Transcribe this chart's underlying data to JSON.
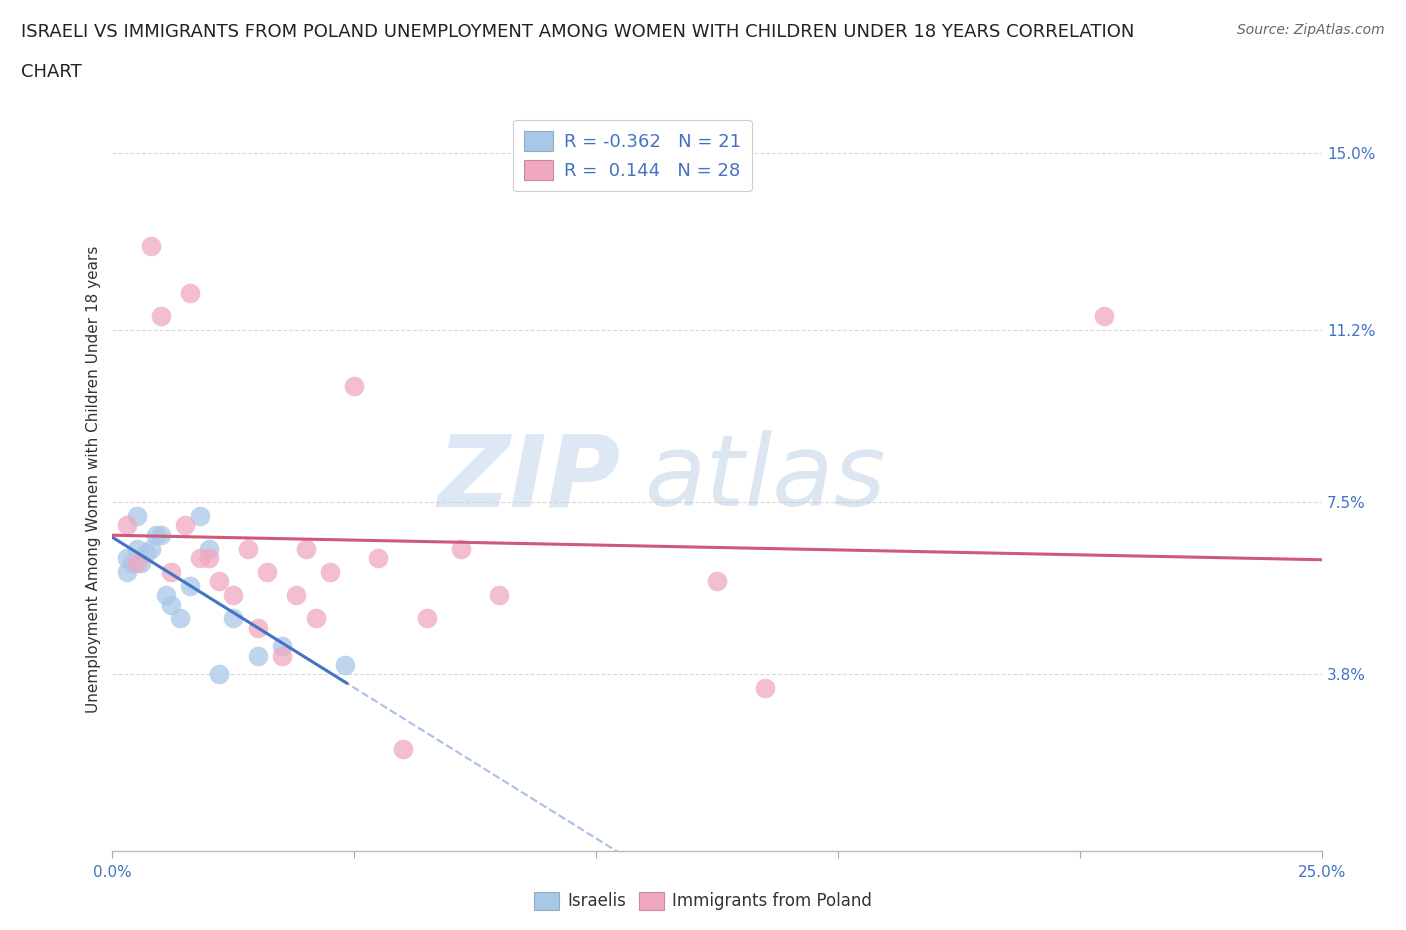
{
  "title_line1": "ISRAELI VS IMMIGRANTS FROM POLAND UNEMPLOYMENT AMONG WOMEN WITH CHILDREN UNDER 18 YEARS CORRELATION",
  "title_line2": "CHART",
  "source": "Source: ZipAtlas.com",
  "ylabel": "Unemployment Among Women with Children Under 18 years",
  "xmin": 0.0,
  "xmax": 0.25,
  "ymin": 0.0,
  "ymax": 0.16,
  "yticks": [
    0.038,
    0.075,
    0.112,
    0.15
  ],
  "ytick_labels": [
    "3.8%",
    "7.5%",
    "11.2%",
    "15.0%"
  ],
  "xticks": [
    0.0,
    0.05,
    0.1,
    0.15,
    0.2,
    0.25
  ],
  "xtick_labels": [
    "0.0%",
    "",
    "",
    "",
    "",
    "25.0%"
  ],
  "watermark_zip": "ZIP",
  "watermark_atlas": "atlas",
  "israeli_color": "#a8c8e8",
  "poland_color": "#f0a8c0",
  "israeli_line_color": "#4472c4",
  "poland_line_color": "#d05878",
  "legend_israeli_label": "R = -0.362   N = 21",
  "legend_poland_label": "R =  0.144   N = 28",
  "israelis_x": [
    0.003,
    0.003,
    0.004,
    0.005,
    0.005,
    0.006,
    0.007,
    0.008,
    0.009,
    0.01,
    0.011,
    0.012,
    0.014,
    0.016,
    0.018,
    0.02,
    0.022,
    0.025,
    0.03,
    0.035,
    0.048
  ],
  "israelis_y": [
    0.063,
    0.06,
    0.062,
    0.065,
    0.072,
    0.062,
    0.064,
    0.065,
    0.068,
    0.068,
    0.055,
    0.053,
    0.05,
    0.057,
    0.072,
    0.065,
    0.038,
    0.05,
    0.042,
    0.044,
    0.04
  ],
  "poland_x": [
    0.003,
    0.005,
    0.008,
    0.01,
    0.012,
    0.015,
    0.016,
    0.018,
    0.02,
    0.022,
    0.025,
    0.028,
    0.03,
    0.032,
    0.035,
    0.038,
    0.04,
    0.042,
    0.045,
    0.05,
    0.055,
    0.06,
    0.065,
    0.072,
    0.08,
    0.125,
    0.135,
    0.205
  ],
  "poland_y": [
    0.07,
    0.062,
    0.13,
    0.115,
    0.06,
    0.07,
    0.12,
    0.063,
    0.063,
    0.058,
    0.055,
    0.065,
    0.048,
    0.06,
    0.042,
    0.055,
    0.065,
    0.05,
    0.06,
    0.1,
    0.063,
    0.022,
    0.05,
    0.065,
    0.055,
    0.058,
    0.035,
    0.115
  ],
  "background_color": "#ffffff",
  "plot_bg_color": "#ffffff",
  "grid_color": "#d0d0d0",
  "title_fontsize": 13,
  "axis_tick_fontsize": 11,
  "ylabel_fontsize": 11
}
